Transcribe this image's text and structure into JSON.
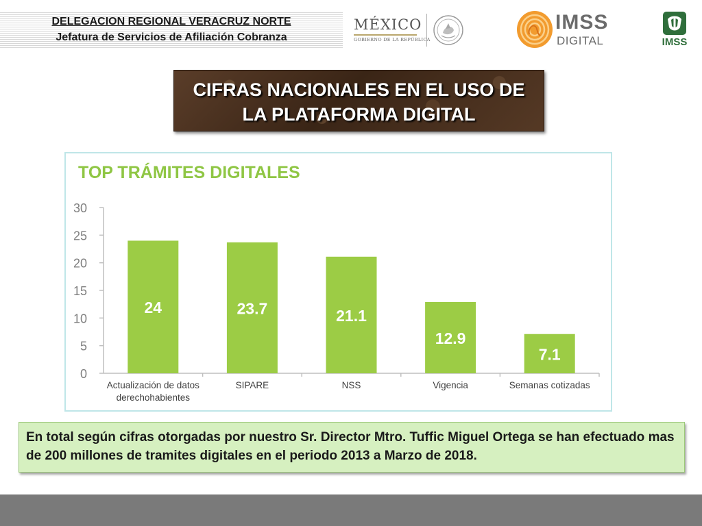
{
  "header": {
    "line1": "DELEGACION REGIONAL VERACRUZ NORTE",
    "line2": "Jefatura de Servicios de Afiliación Cobranza"
  },
  "logos": {
    "mexico_word": "MÉXICO",
    "mexico_sub": "GOBIERNO DE LA REPÚBLICA",
    "imss_word": "IMSS",
    "imss_sub": "DIGITAL",
    "imss_emblem_text": "IMSS",
    "brand_colors": {
      "imss_orange": "#f0a030",
      "imss_green": "#2f6e3b",
      "gray": "#6b6b6b"
    }
  },
  "title": {
    "line1": "CIFRAS NACIONALES EN EL USO DE",
    "line2": "LA PLATAFORMA DIGITAL"
  },
  "chart_data": {
    "type": "bar",
    "title": "TOP TRÁMITES DIGITALES",
    "categories": [
      [
        "Actualización de datos",
        "derechohabientes"
      ],
      [
        "SIPARE"
      ],
      [
        "NSS"
      ],
      [
        "Vigencia"
      ],
      [
        "Semanas cotizadas"
      ]
    ],
    "values": [
      24,
      23.7,
      21.1,
      12.9,
      7.1
    ],
    "data_labels": [
      "24",
      "23.7",
      "21.1",
      "12.9",
      "7.1"
    ],
    "yticks": [
      "0",
      "5",
      "10",
      "15",
      "20",
      "25",
      "30"
    ],
    "ylim": [
      0,
      30
    ],
    "xlabel": "",
    "ylabel": "",
    "grid": false,
    "bar_color": "#9ccc45",
    "title_color": "#8fc644"
  },
  "note": {
    "text": "En total según cifras otorgadas por nuestro Sr. Director Mtro. Tuffic Miguel Ortega se han efectuado mas de 200 millones de tramites digitales en el periodo 2013 a Marzo de 2018."
  }
}
